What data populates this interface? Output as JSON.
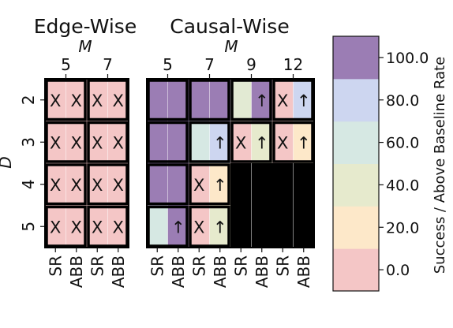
{
  "chart_data": {
    "type": "heatmap",
    "cell_symbol_fail": "X",
    "cell_symbol_above": "↑",
    "y_axis_label": "D",
    "y_ticks": [
      "2",
      "3",
      "4",
      "5"
    ],
    "x_axis_label_panels": "M",
    "panels": [
      {
        "title": "Edge-Wise",
        "m_values": [
          "5",
          "7"
        ],
        "columns": [
          "SR",
          "ABB",
          "SR",
          "ABB"
        ],
        "values": [
          [
            0,
            0,
            0,
            0
          ],
          [
            0,
            0,
            0,
            0
          ],
          [
            0,
            0,
            0,
            0
          ],
          [
            0,
            0,
            0,
            0
          ]
        ],
        "marks": [
          [
            "X",
            "X",
            "X",
            "X"
          ],
          [
            "X",
            "X",
            "X",
            "X"
          ],
          [
            "X",
            "X",
            "X",
            "X"
          ],
          [
            "X",
            "X",
            "X",
            "X"
          ]
        ]
      },
      {
        "title": "Causal-Wise",
        "m_values": [
          "5",
          "7",
          "9",
          "12"
        ],
        "columns": [
          "SR",
          "ABB",
          "SR",
          "ABB",
          "SR",
          "ABB",
          "SR",
          "ABB"
        ],
        "values": [
          [
            100,
            100,
            100,
            100,
            45,
            100,
            0,
            80
          ],
          [
            100,
            100,
            60,
            80,
            0,
            40,
            0,
            20
          ],
          [
            100,
            100,
            0,
            20,
            null,
            null,
            null,
            null
          ],
          [
            60,
            100,
            0,
            40,
            null,
            null,
            null,
            null
          ]
        ],
        "marks": [
          [
            "",
            "",
            "",
            "",
            "",
            "↑",
            "X",
            "↑"
          ],
          [
            "",
            "",
            "",
            "↑",
            "X",
            "↑",
            "X",
            "↑"
          ],
          [
            "",
            "",
            "X",
            "↑",
            "",
            "",
            "",
            ""
          ],
          [
            "",
            "↑",
            "X",
            "↑",
            "",
            "",
            "",
            ""
          ]
        ]
      }
    ],
    "colorbar": {
      "label": "Success / Above Baseline Rate",
      "ticks": [
        "0.0",
        "20.0",
        "40.0",
        "60.0",
        "80.0",
        "100.0"
      ],
      "colors": [
        "#f4c6c6",
        "#fde8c9",
        "#e6eacd",
        "#d6e8e3",
        "#cdd6f0",
        "#9b7db4"
      ]
    },
    "missing_color": "#000000"
  }
}
